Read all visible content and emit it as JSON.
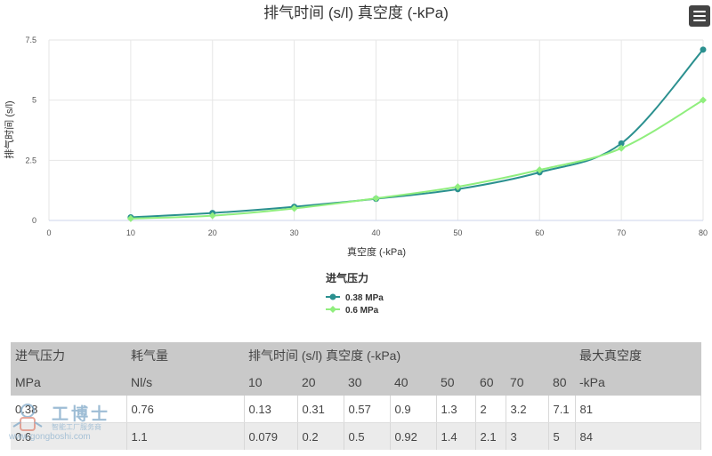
{
  "chart_data": {
    "type": "line",
    "title": "排气时间 (s/l) 真空度 (-kPa)",
    "xlabel": "真空度 (-kPa)",
    "ylabel": "排气时间 (s/l)",
    "xlim": [
      0,
      80
    ],
    "ylim": [
      0,
      7.5
    ],
    "x_ticks": [
      "0",
      "10",
      "20",
      "30",
      "40",
      "50",
      "60",
      "70",
      "80"
    ],
    "y_ticks": [
      "0",
      "2.5",
      "5",
      "7.5"
    ],
    "grid": true,
    "legend_title": "进气压力",
    "legend_position": "bottom-center",
    "x": [
      10,
      20,
      30,
      40,
      50,
      60,
      70,
      80
    ],
    "series": [
      {
        "name": "0.38 MPa",
        "color": "#2b908f",
        "values": [
          0.13,
          0.31,
          0.57,
          0.9,
          1.3,
          2,
          3.2,
          7.1
        ]
      },
      {
        "name": "0.6 MPa",
        "color": "#90ee7e",
        "values": [
          0.079,
          0.2,
          0.5,
          0.92,
          1.4,
          2.1,
          3,
          5
        ]
      }
    ]
  },
  "table": {
    "header1": [
      "进气压力",
      "耗气量",
      "排气时间 (s/l) 真空度 (-kPa)",
      "最大真空度"
    ],
    "header2": [
      "MPa",
      "Nl/s",
      "10",
      "20",
      "30",
      "40",
      "50",
      "60",
      "70",
      "80",
      "-kPa"
    ],
    "rows": [
      [
        "0.38",
        "0.76",
        "0.13",
        "0.31",
        "0.57",
        "0.9",
        "1.3",
        "2",
        "3.2",
        "7.1",
        "81"
      ],
      [
        "0.6",
        "1.1",
        "0.079",
        "0.2",
        "0.5",
        "0.92",
        "1.4",
        "2.1",
        "3",
        "5",
        "84"
      ]
    ]
  },
  "watermark": {
    "title": "工博士",
    "subtitle": "智能工厂服务商",
    "url": "www.gongboshi.com"
  },
  "icons": {
    "menu": "hamburger-menu-icon",
    "watermark": "robot-logo-icon"
  }
}
